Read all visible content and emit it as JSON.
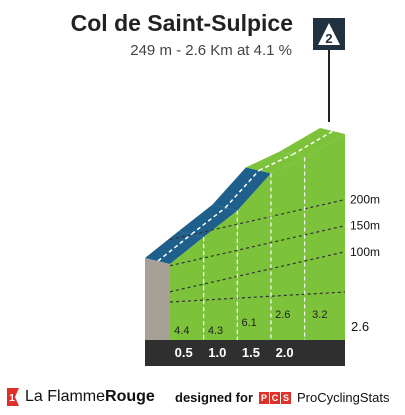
{
  "header": {
    "title": "Col de Saint-Sulpice",
    "subtitle": "249 m - 2.6 Km at 4.1 %"
  },
  "category_badge": "2",
  "footer": {
    "brand_prefix": "La Flamme",
    "brand_suffix": "Rouge",
    "designed_by": "designed for",
    "pcs_letters": [
      "P",
      "C",
      "S"
    ],
    "pcs_name": "ProCyclingStats"
  },
  "colors": {
    "green": "#7cc23a",
    "blue": "#1e5f8c",
    "base": "#2f2f2f",
    "wall": "#a6a097",
    "grid": "#333333",
    "brand_red": "#e0302a"
  },
  "chart_data": {
    "type": "area",
    "title": "Col de Saint-Sulpice",
    "subtitle": "249 m - 2.6 Km at 4.1 %",
    "xlabel": "",
    "ylabel": "",
    "x_unit": "km",
    "y_unit": "m",
    "distance_ticks": [
      "0.5",
      "1.0",
      "1.5",
      "2.0"
    ],
    "total_distance_label": "2.6",
    "ylim": [
      0,
      249
    ],
    "elevation_ticks": [
      {
        "value": 100,
        "label": "100m"
      },
      {
        "value": 150,
        "label": "150m"
      },
      {
        "value": 200,
        "label": "200m"
      }
    ],
    "segments": [
      {
        "end_km": 0.5,
        "gradient": "4.4",
        "color": "blue"
      },
      {
        "end_km": 1.0,
        "gradient": "4.3",
        "color": "blue"
      },
      {
        "end_km": 1.5,
        "gradient": "6.1",
        "color": "blue"
      },
      {
        "end_km": 2.0,
        "gradient": "2.6",
        "color": "green"
      },
      {
        "end_km": 2.6,
        "gradient": "3.2",
        "color": "green"
      }
    ],
    "grid": true
  }
}
